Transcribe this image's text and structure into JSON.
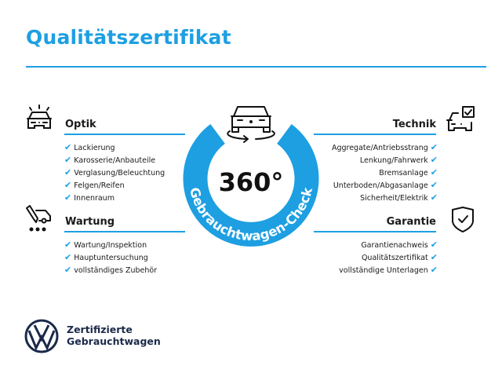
{
  "title": "Qualitätszertifikat",
  "accent_color": "#1d9fe2",
  "center": {
    "value": "360°",
    "ring_label": "Gebrauchtwagen-Check",
    "icon": "car-rotate-icon"
  },
  "sections": {
    "optik": {
      "heading": "Optik",
      "icon": "car-lights-icon",
      "items": [
        "Lackierung",
        "Karosserie/Anbauteile",
        "Verglasung/Beleuchtung",
        "Felgen/Reifen",
        "Innenraum"
      ]
    },
    "wartung": {
      "heading": "Wartung",
      "icon": "service-truck-icon",
      "items": [
        "Wartung/Inspektion",
        "Hauptuntersuchung",
        "vollständiges Zubehör"
      ]
    },
    "technik": {
      "heading": "Technik",
      "icon": "car-checkbox-icon",
      "items": [
        "Aggregate/Antriebsstrang",
        "Lenkung/Fahrwerk",
        "Bremsanlage",
        "Unterboden/Abgasanlage",
        "Sicherheit/Elektrik"
      ]
    },
    "garantie": {
      "heading": "Garantie",
      "icon": "shield-check-icon",
      "items": [
        "Garantienachweis",
        "Qualitätszertifikat",
        "vollständige Unterlagen"
      ]
    }
  },
  "check_mark": "✔",
  "footer": {
    "line1": "Zertifizierte",
    "line2": "Gebrauchtwagen",
    "logo": "vw-logo"
  }
}
